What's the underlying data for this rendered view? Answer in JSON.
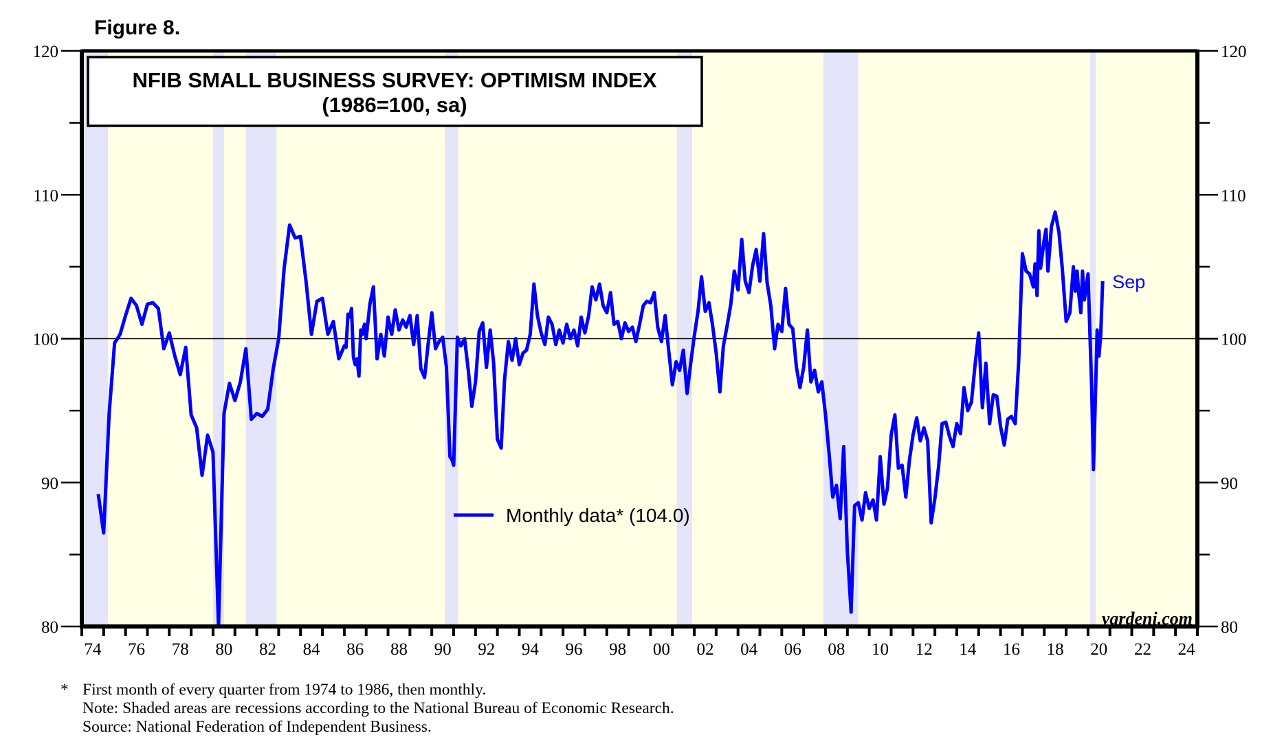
{
  "figure_label": "Figure 8.",
  "notes": {
    "asterisk": "*",
    "footnote": "First month of every quarter from 1974 to 1986, then monthly.",
    "recession_note": "Note: Shaded areas are recessions according to the National Bureau of Economic Research.",
    "source": "Source: National Federation of Independent Business."
  },
  "chart_data": {
    "type": "line",
    "title": "NFIB SMALL BUSINESS SURVEY: OPTIMISM INDEX",
    "subtitle": "(1986=100, sa)",
    "xlabel": "",
    "ylabel": "",
    "xlim": [
      1974,
      2025
    ],
    "ylim": [
      80,
      120
    ],
    "x_tick_labels": [
      "74",
      "76",
      "78",
      "80",
      "82",
      "84",
      "86",
      "88",
      "90",
      "92",
      "94",
      "96",
      "98",
      "00",
      "02",
      "04",
      "06",
      "08",
      "10",
      "12",
      "14",
      "16",
      "18",
      "20",
      "22",
      "24"
    ],
    "y_tick_labels_left": [
      "80",
      "90",
      "100",
      "110",
      "120"
    ],
    "y_tick_labels_right": [
      "80",
      "90",
      "100",
      "110",
      "120"
    ],
    "y_tick_values": [
      80,
      90,
      100,
      110,
      120
    ],
    "reference_line": 100,
    "grid": false,
    "legend": {
      "label": "Monthly data* (104.0)",
      "placement": "center-bottom"
    },
    "annotation": {
      "text": "Sep",
      "x": 2020.67,
      "y": 104.0
    },
    "watermark": "yardeni.com",
    "colors": {
      "series": "#0000ff",
      "background": "#ffffe6",
      "recession": "#e4e4fa"
    },
    "recessions": [
      [
        1973.9,
        1975.2
      ],
      [
        1980.0,
        1980.5
      ],
      [
        1981.5,
        1982.9
      ],
      [
        1990.6,
        1991.2
      ],
      [
        2001.2,
        2001.9
      ],
      [
        2007.9,
        2009.5
      ],
      [
        2020.1,
        2020.35
      ]
    ],
    "series": [
      {
        "name": "Monthly data*",
        "points": [
          [
            1974.75,
            89.2
          ],
          [
            1975.0,
            86.5
          ],
          [
            1975.25,
            94.8
          ],
          [
            1975.5,
            99.7
          ],
          [
            1975.75,
            100.3
          ],
          [
            1976.0,
            101.6
          ],
          [
            1976.25,
            102.8
          ],
          [
            1976.5,
            102.3
          ],
          [
            1976.75,
            101.0
          ],
          [
            1977.0,
            102.4
          ],
          [
            1977.25,
            102.5
          ],
          [
            1977.5,
            102.1
          ],
          [
            1977.75,
            99.3
          ],
          [
            1978.0,
            100.4
          ],
          [
            1978.25,
            98.8
          ],
          [
            1978.5,
            97.5
          ],
          [
            1978.75,
            99.4
          ],
          [
            1979.0,
            94.7
          ],
          [
            1979.25,
            93.8
          ],
          [
            1979.5,
            90.5
          ],
          [
            1979.75,
            93.3
          ],
          [
            1980.0,
            92.1
          ],
          [
            1980.25,
            80.0
          ],
          [
            1980.5,
            94.8
          ],
          [
            1980.75,
            96.9
          ],
          [
            1981.0,
            95.7
          ],
          [
            1981.25,
            97.0
          ],
          [
            1981.5,
            99.3
          ],
          [
            1981.75,
            94.4
          ],
          [
            1982.0,
            94.8
          ],
          [
            1982.25,
            94.6
          ],
          [
            1982.5,
            95.1
          ],
          [
            1982.75,
            97.9
          ],
          [
            1983.0,
            100.0
          ],
          [
            1983.25,
            104.9
          ],
          [
            1983.5,
            107.9
          ],
          [
            1983.75,
            107.0
          ],
          [
            1984.0,
            107.1
          ],
          [
            1984.25,
            104.0
          ],
          [
            1984.5,
            100.3
          ],
          [
            1984.75,
            102.6
          ],
          [
            1985.0,
            102.8
          ],
          [
            1985.25,
            100.3
          ],
          [
            1985.5,
            101.2
          ],
          [
            1985.75,
            98.6
          ],
          [
            1986.0,
            99.5
          ],
          [
            1986.08,
            99.4
          ],
          [
            1986.17,
            101.7
          ],
          [
            1986.25,
            101.5
          ],
          [
            1986.33,
            102.1
          ],
          [
            1986.42,
            98.7
          ],
          [
            1986.5,
            98.2
          ],
          [
            1986.58,
            98.6
          ],
          [
            1986.67,
            97.4
          ],
          [
            1986.75,
            100.6
          ],
          [
            1986.83,
            100.3
          ],
          [
            1986.92,
            101.0
          ],
          [
            1987.0,
            100.0
          ],
          [
            1987.17,
            102.4
          ],
          [
            1987.33,
            103.6
          ],
          [
            1987.5,
            98.6
          ],
          [
            1987.67,
            100.3
          ],
          [
            1987.83,
            98.8
          ],
          [
            1988.0,
            101.5
          ],
          [
            1988.17,
            100.3
          ],
          [
            1988.33,
            102.0
          ],
          [
            1988.5,
            100.6
          ],
          [
            1988.67,
            101.3
          ],
          [
            1988.83,
            100.8
          ],
          [
            1989.0,
            101.6
          ],
          [
            1989.17,
            99.6
          ],
          [
            1989.33,
            101.6
          ],
          [
            1989.5,
            97.9
          ],
          [
            1989.67,
            97.3
          ],
          [
            1989.83,
            99.6
          ],
          [
            1990.0,
            101.8
          ],
          [
            1990.17,
            99.3
          ],
          [
            1990.33,
            99.8
          ],
          [
            1990.5,
            100.1
          ],
          [
            1990.67,
            98.0
          ],
          [
            1990.83,
            91.8
          ],
          [
            1990.92,
            91.6
          ],
          [
            1991.0,
            91.2
          ],
          [
            1991.17,
            100.1
          ],
          [
            1991.33,
            99.5
          ],
          [
            1991.5,
            100.0
          ],
          [
            1991.67,
            97.8
          ],
          [
            1991.83,
            95.3
          ],
          [
            1992.0,
            97.0
          ],
          [
            1992.17,
            100.5
          ],
          [
            1992.33,
            101.1
          ],
          [
            1992.5,
            98.0
          ],
          [
            1992.67,
            100.6
          ],
          [
            1992.83,
            98.3
          ],
          [
            1993.0,
            93.0
          ],
          [
            1993.17,
            92.4
          ],
          [
            1993.33,
            97.2
          ],
          [
            1993.5,
            99.8
          ],
          [
            1993.67,
            98.5
          ],
          [
            1993.83,
            100.0
          ],
          [
            1994.0,
            98.2
          ],
          [
            1994.17,
            99.0
          ],
          [
            1994.33,
            99.2
          ],
          [
            1994.5,
            100.3
          ],
          [
            1994.67,
            103.8
          ],
          [
            1994.83,
            101.6
          ],
          [
            1995.0,
            100.4
          ],
          [
            1995.17,
            99.6
          ],
          [
            1995.33,
            101.5
          ],
          [
            1995.5,
            101.0
          ],
          [
            1995.67,
            99.6
          ],
          [
            1995.83,
            100.6
          ],
          [
            1996.0,
            99.7
          ],
          [
            1996.17,
            101.0
          ],
          [
            1996.33,
            100.0
          ],
          [
            1996.5,
            100.6
          ],
          [
            1996.67,
            99.5
          ],
          [
            1996.83,
            101.5
          ],
          [
            1997.0,
            100.4
          ],
          [
            1997.17,
            101.6
          ],
          [
            1997.33,
            103.6
          ],
          [
            1997.5,
            102.7
          ],
          [
            1997.67,
            103.8
          ],
          [
            1997.83,
            102.3
          ],
          [
            1998.0,
            101.8
          ],
          [
            1998.17,
            103.2
          ],
          [
            1998.33,
            101.0
          ],
          [
            1998.5,
            101.2
          ],
          [
            1998.67,
            100.0
          ],
          [
            1998.83,
            101.1
          ],
          [
            1999.0,
            100.5
          ],
          [
            1999.17,
            100.8
          ],
          [
            1999.33,
            99.8
          ],
          [
            1999.5,
            101.0
          ],
          [
            1999.67,
            102.3
          ],
          [
            1999.83,
            102.6
          ],
          [
            2000.0,
            102.5
          ],
          [
            2000.17,
            103.2
          ],
          [
            2000.33,
            100.8
          ],
          [
            2000.5,
            99.8
          ],
          [
            2000.67,
            101.6
          ],
          [
            2000.83,
            99.2
          ],
          [
            2001.0,
            96.8
          ],
          [
            2001.17,
            98.4
          ],
          [
            2001.33,
            97.8
          ],
          [
            2001.5,
            99.2
          ],
          [
            2001.67,
            96.2
          ],
          [
            2001.83,
            98.2
          ],
          [
            2002.0,
            100.2
          ],
          [
            2002.17,
            101.9
          ],
          [
            2002.33,
            104.3
          ],
          [
            2002.5,
            101.9
          ],
          [
            2002.67,
            102.5
          ],
          [
            2002.83,
            101.0
          ],
          [
            2003.0,
            99.0
          ],
          [
            2003.17,
            96.3
          ],
          [
            2003.33,
            99.5
          ],
          [
            2003.5,
            100.9
          ],
          [
            2003.67,
            102.4
          ],
          [
            2003.83,
            104.7
          ],
          [
            2004.0,
            103.4
          ],
          [
            2004.17,
            106.9
          ],
          [
            2004.33,
            104.0
          ],
          [
            2004.5,
            103.2
          ],
          [
            2004.67,
            105.1
          ],
          [
            2004.83,
            106.2
          ],
          [
            2005.0,
            104.0
          ],
          [
            2005.17,
            107.3
          ],
          [
            2005.33,
            103.9
          ],
          [
            2005.5,
            102.3
          ],
          [
            2005.67,
            99.3
          ],
          [
            2005.83,
            101.0
          ],
          [
            2006.0,
            100.5
          ],
          [
            2006.17,
            103.5
          ],
          [
            2006.33,
            101.0
          ],
          [
            2006.5,
            100.7
          ],
          [
            2006.67,
            98.0
          ],
          [
            2006.83,
            96.6
          ],
          [
            2007.0,
            98.0
          ],
          [
            2007.17,
            100.6
          ],
          [
            2007.33,
            97.0
          ],
          [
            2007.5,
            97.8
          ],
          [
            2007.67,
            96.3
          ],
          [
            2007.83,
            97.0
          ],
          [
            2008.0,
            94.7
          ],
          [
            2008.17,
            91.9
          ],
          [
            2008.33,
            89.0
          ],
          [
            2008.5,
            89.8
          ],
          [
            2008.67,
            87.5
          ],
          [
            2008.83,
            92.5
          ],
          [
            2009.0,
            85.2
          ],
          [
            2009.17,
            81.0
          ],
          [
            2009.33,
            88.4
          ],
          [
            2009.5,
            88.6
          ],
          [
            2009.67,
            87.4
          ],
          [
            2009.83,
            89.3
          ],
          [
            2010.0,
            88.2
          ],
          [
            2010.17,
            88.8
          ],
          [
            2010.33,
            87.4
          ],
          [
            2010.5,
            91.8
          ],
          [
            2010.67,
            88.5
          ],
          [
            2010.83,
            89.6
          ],
          [
            2011.0,
            93.3
          ],
          [
            2011.17,
            94.7
          ],
          [
            2011.33,
            91.0
          ],
          [
            2011.5,
            91.2
          ],
          [
            2011.67,
            89.0
          ],
          [
            2011.83,
            91.5
          ],
          [
            2012.0,
            93.3
          ],
          [
            2012.17,
            94.5
          ],
          [
            2012.33,
            92.9
          ],
          [
            2012.5,
            93.8
          ],
          [
            2012.67,
            92.9
          ],
          [
            2012.83,
            87.2
          ],
          [
            2013.0,
            88.9
          ],
          [
            2013.17,
            91.1
          ],
          [
            2013.33,
            94.1
          ],
          [
            2013.5,
            94.2
          ],
          [
            2013.67,
            93.2
          ],
          [
            2013.83,
            92.5
          ],
          [
            2014.0,
            94.1
          ],
          [
            2014.17,
            93.4
          ],
          [
            2014.33,
            96.6
          ],
          [
            2014.5,
            95.0
          ],
          [
            2014.67,
            95.6
          ],
          [
            2014.83,
            98.1
          ],
          [
            2015.0,
            100.4
          ],
          [
            2015.17,
            95.2
          ],
          [
            2015.33,
            98.3
          ],
          [
            2015.5,
            94.1
          ],
          [
            2015.67,
            96.1
          ],
          [
            2015.83,
            96.0
          ],
          [
            2016.0,
            93.9
          ],
          [
            2016.17,
            92.6
          ],
          [
            2016.33,
            94.4
          ],
          [
            2016.5,
            94.6
          ],
          [
            2016.67,
            94.1
          ],
          [
            2016.83,
            98.4
          ],
          [
            2017.0,
            105.9
          ],
          [
            2017.17,
            104.7
          ],
          [
            2017.33,
            104.5
          ],
          [
            2017.5,
            103.6
          ],
          [
            2017.58,
            105.2
          ],
          [
            2017.67,
            103.0
          ],
          [
            2017.75,
            107.5
          ],
          [
            2017.83,
            104.9
          ],
          [
            2018.0,
            106.9
          ],
          [
            2018.08,
            107.6
          ],
          [
            2018.17,
            104.7
          ],
          [
            2018.33,
            107.8
          ],
          [
            2018.5,
            108.8
          ],
          [
            2018.67,
            107.4
          ],
          [
            2018.83,
            104.8
          ],
          [
            2019.0,
            101.2
          ],
          [
            2019.17,
            101.8
          ],
          [
            2019.33,
            105.0
          ],
          [
            2019.42,
            103.3
          ],
          [
            2019.5,
            104.7
          ],
          [
            2019.58,
            103.1
          ],
          [
            2019.67,
            101.8
          ],
          [
            2019.75,
            104.7
          ],
          [
            2019.83,
            102.7
          ],
          [
            2020.0,
            104.5
          ],
          [
            2020.17,
            96.4
          ],
          [
            2020.25,
            90.9
          ],
          [
            2020.42,
            100.6
          ],
          [
            2020.5,
            98.8
          ],
          [
            2020.58,
            100.2
          ],
          [
            2020.67,
            104.0
          ]
        ]
      }
    ]
  }
}
